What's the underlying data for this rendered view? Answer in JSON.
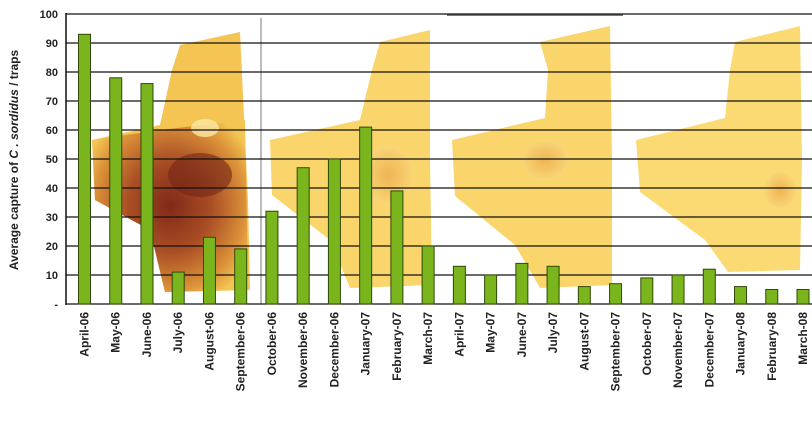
{
  "chart_data": {
    "type": "bar",
    "ylabel_prefix": "Average capture of ",
    "ylabel_species": "C . sordidus",
    "ylabel_suffix": " / traps",
    "ylim": [
      0,
      100
    ],
    "yticks": [
      "-",
      "10",
      "20",
      "30",
      "40",
      "50",
      "60",
      "70",
      "80",
      "90",
      "100"
    ],
    "grid": true,
    "colors": {
      "bar": "#7ab51d",
      "bar_edge": "#2f4a06",
      "grid": "#111111"
    },
    "categories": [
      "April-06",
      "May-06",
      "June-06",
      "July-06",
      "August-06",
      "September-06",
      "October-06",
      "November-06",
      "December-06",
      "January-07",
      "February-07",
      "March-07",
      "April-07",
      "May-07",
      "June-07",
      "July-07",
      "August-07",
      "September-07",
      "October-07",
      "November-07",
      "December-07",
      "January-08",
      "February-08",
      "March-08"
    ],
    "values": [
      93,
      78,
      76,
      11,
      23,
      19,
      32,
      47,
      50,
      61,
      39,
      20,
      13,
      10,
      14,
      13,
      6,
      7,
      9,
      10,
      12,
      6,
      5,
      5
    ]
  }
}
